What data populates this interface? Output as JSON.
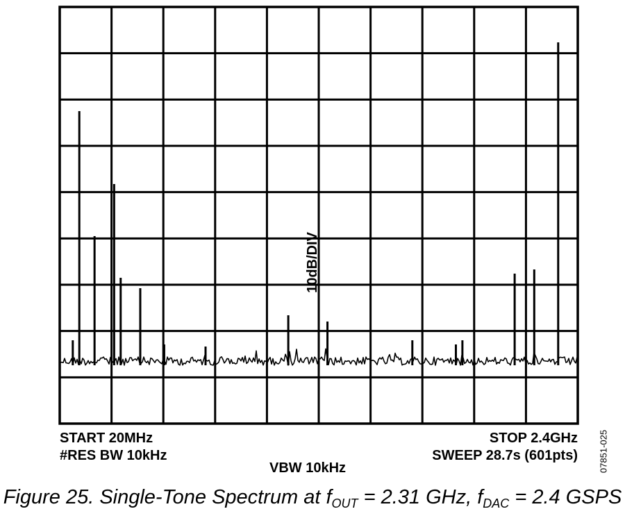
{
  "chart_data": {
    "type": "line",
    "title": "",
    "ylabel": "10dB/DIV",
    "xlabel": "",
    "x_unit": "MHz",
    "xlim": [
      20,
      2400
    ],
    "ylim": [
      0,
      10
    ],
    "grid": true,
    "divisions": {
      "x": 10,
      "y": 9
    },
    "settings": {
      "start": "START 20MHz",
      "stop": "STOP 2.4GHz",
      "res_bw": "#RES BW 10kHz",
      "vbw": "VBW 10kHz",
      "sweep": "SWEEP 28.7s (601pts)"
    },
    "noise_floor": 1.5,
    "series": [
      {
        "x": [
          80,
          110,
          180,
          270,
          300,
          390,
          500,
          690,
          1070,
          1250,
          1640,
          1840,
          1870,
          2110,
          2200,
          2310
        ],
        "values": [
          2.0,
          7.5,
          4.5,
          5.75,
          3.5,
          3.25,
          1.9,
          1.85,
          2.6,
          2.45,
          2.0,
          1.9,
          2.0,
          3.6,
          3.7,
          9.15
        ]
      }
    ]
  },
  "figure_id": "07851-025",
  "caption": {
    "prefix": "Figure 25. Single-Tone Spectrum at f",
    "sub1": "OUT",
    "middle": " = 2.31 GHz, f",
    "sub2": "DAC",
    "suffix": " = 2.4 GSPS"
  }
}
